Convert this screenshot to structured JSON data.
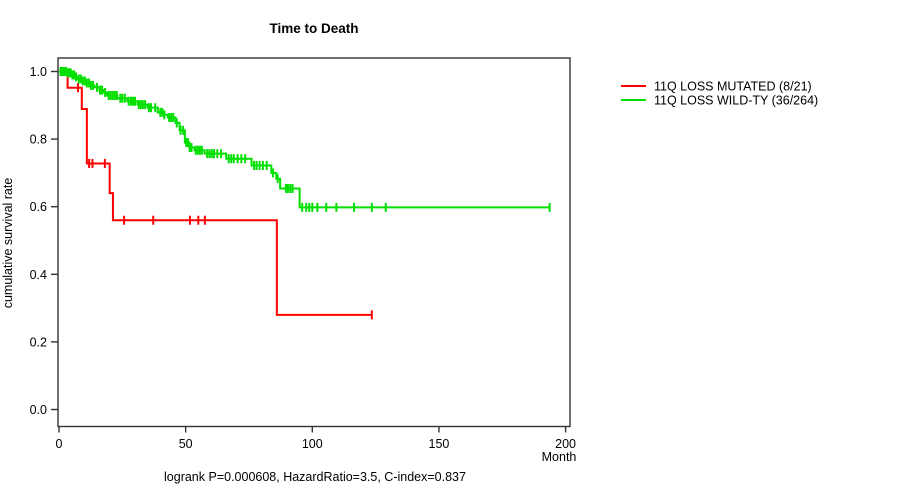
{
  "title": "Time to Death",
  "annotation": "logrank P=0.000608, HazardRatio=3.5, C-index=0.837",
  "axes": {
    "y_label": "cumulative survival rate",
    "x_label": "Month",
    "x_ticks": {
      "values": [
        0,
        50,
        100,
        150,
        200
      ],
      "labels": [
        "0",
        "50",
        "100",
        "150",
        "200"
      ]
    },
    "y_ticks": {
      "values": [
        1.0,
        0.8,
        0.6,
        0.4,
        0.2,
        0.0
      ],
      "labels": [
        "1.0",
        "0.8",
        "0.6",
        "0.4",
        "0.2",
        "0.0"
      ]
    }
  },
  "legend": {
    "items": [
      {
        "label": "11Q LOSS MUTATED (8/21)"
      },
      {
        "label": "11Q LOSS WILD-TY (36/264)"
      }
    ]
  },
  "chart_data": {
    "type": "line",
    "subtype": "kaplan-meier-step",
    "title": "Time to Death",
    "xlabel": "Month",
    "ylabel": "cumulative survival rate",
    "xlim": [
      0,
      200
    ],
    "ylim": [
      0.0,
      1.0
    ],
    "grid": false,
    "legend_position": "outside-right-top",
    "frame_color": "#333333",
    "series": [
      {
        "name": "11Q LOSS MUTATED (8/21)",
        "color": "#FF0000",
        "events_total": "8/21",
        "steps": [
          [
            0,
            1.0
          ],
          [
            3.4,
            0.952
          ],
          [
            9,
            0.889
          ],
          [
            11,
            0.728
          ],
          [
            20,
            0.64
          ],
          [
            21.3,
            0.56
          ],
          [
            86,
            0.28
          ]
        ],
        "end_month": 123.5,
        "censor_months": [
          7.5,
          11.9,
          13.2,
          18.1,
          25.7,
          37.2,
          51.7,
          55.0,
          57.6,
          123.5
        ]
      },
      {
        "name": "11Q LOSS WILD-TY (36/264)",
        "color": "#00DF00",
        "events_total": "36/264",
        "steps": [
          [
            0,
            1.0
          ],
          [
            3,
            0.996
          ],
          [
            5,
            0.99
          ],
          [
            6.5,
            0.984
          ],
          [
            7.5,
            0.978
          ],
          [
            9,
            0.972
          ],
          [
            10.5,
            0.966
          ],
          [
            12,
            0.959
          ],
          [
            14,
            0.953
          ],
          [
            16,
            0.945
          ],
          [
            17.5,
            0.938
          ],
          [
            19,
            0.929
          ],
          [
            23,
            0.921
          ],
          [
            27,
            0.912
          ],
          [
            31,
            0.902
          ],
          [
            35,
            0.893
          ],
          [
            39,
            0.879
          ],
          [
            41,
            0.872
          ],
          [
            43,
            0.864
          ],
          [
            46,
            0.848
          ],
          [
            47.6,
            0.826
          ],
          [
            49.7,
            0.79
          ],
          [
            51.5,
            0.775
          ],
          [
            53.5,
            0.767
          ],
          [
            57.5,
            0.757
          ],
          [
            66,
            0.742
          ],
          [
            76,
            0.722
          ],
          [
            83.8,
            0.7
          ],
          [
            85.8,
            0.683
          ],
          [
            87.3,
            0.654
          ],
          [
            95,
            0.598
          ]
        ],
        "end_month": 193.7,
        "censor_months": [
          0.6,
          1.2,
          1.7,
          2.2,
          2.8,
          3.4,
          4.0,
          4.6,
          5.3,
          6.0,
          6.7,
          7.8,
          8.6,
          9.4,
          10.2,
          11.0,
          11.8,
          12.6,
          13.4,
          15.0,
          16.2,
          17.0,
          18.2,
          19.6,
          20.4,
          21.2,
          22.0,
          22.8,
          24.2,
          25.0,
          26.0,
          27.5,
          28.4,
          29.2,
          30.0,
          31.5,
          32.3,
          33.1,
          34.0,
          35.5,
          36.3,
          38.0,
          40.0,
          40.8,
          41.6,
          43.5,
          44.3,
          45.1,
          46.5,
          48.0,
          49.0,
          50.2,
          50.9,
          51.6,
          52.3,
          54.0,
          54.8,
          55.6,
          56.4,
          58.5,
          59.4,
          60.3,
          61.2,
          62.5,
          64.0,
          67.0,
          68.0,
          69.0,
          70.5,
          72.0,
          73.5,
          77.0,
          78.0,
          79.2,
          80.5,
          82.0,
          84.5,
          86.3,
          89.6,
          90.4,
          91.3,
          92.2,
          96.0,
          97.6,
          98.8,
          100.0,
          102.0,
          105.5,
          109.5,
          116.5,
          123.5,
          129.0,
          193.7
        ]
      }
    ]
  }
}
